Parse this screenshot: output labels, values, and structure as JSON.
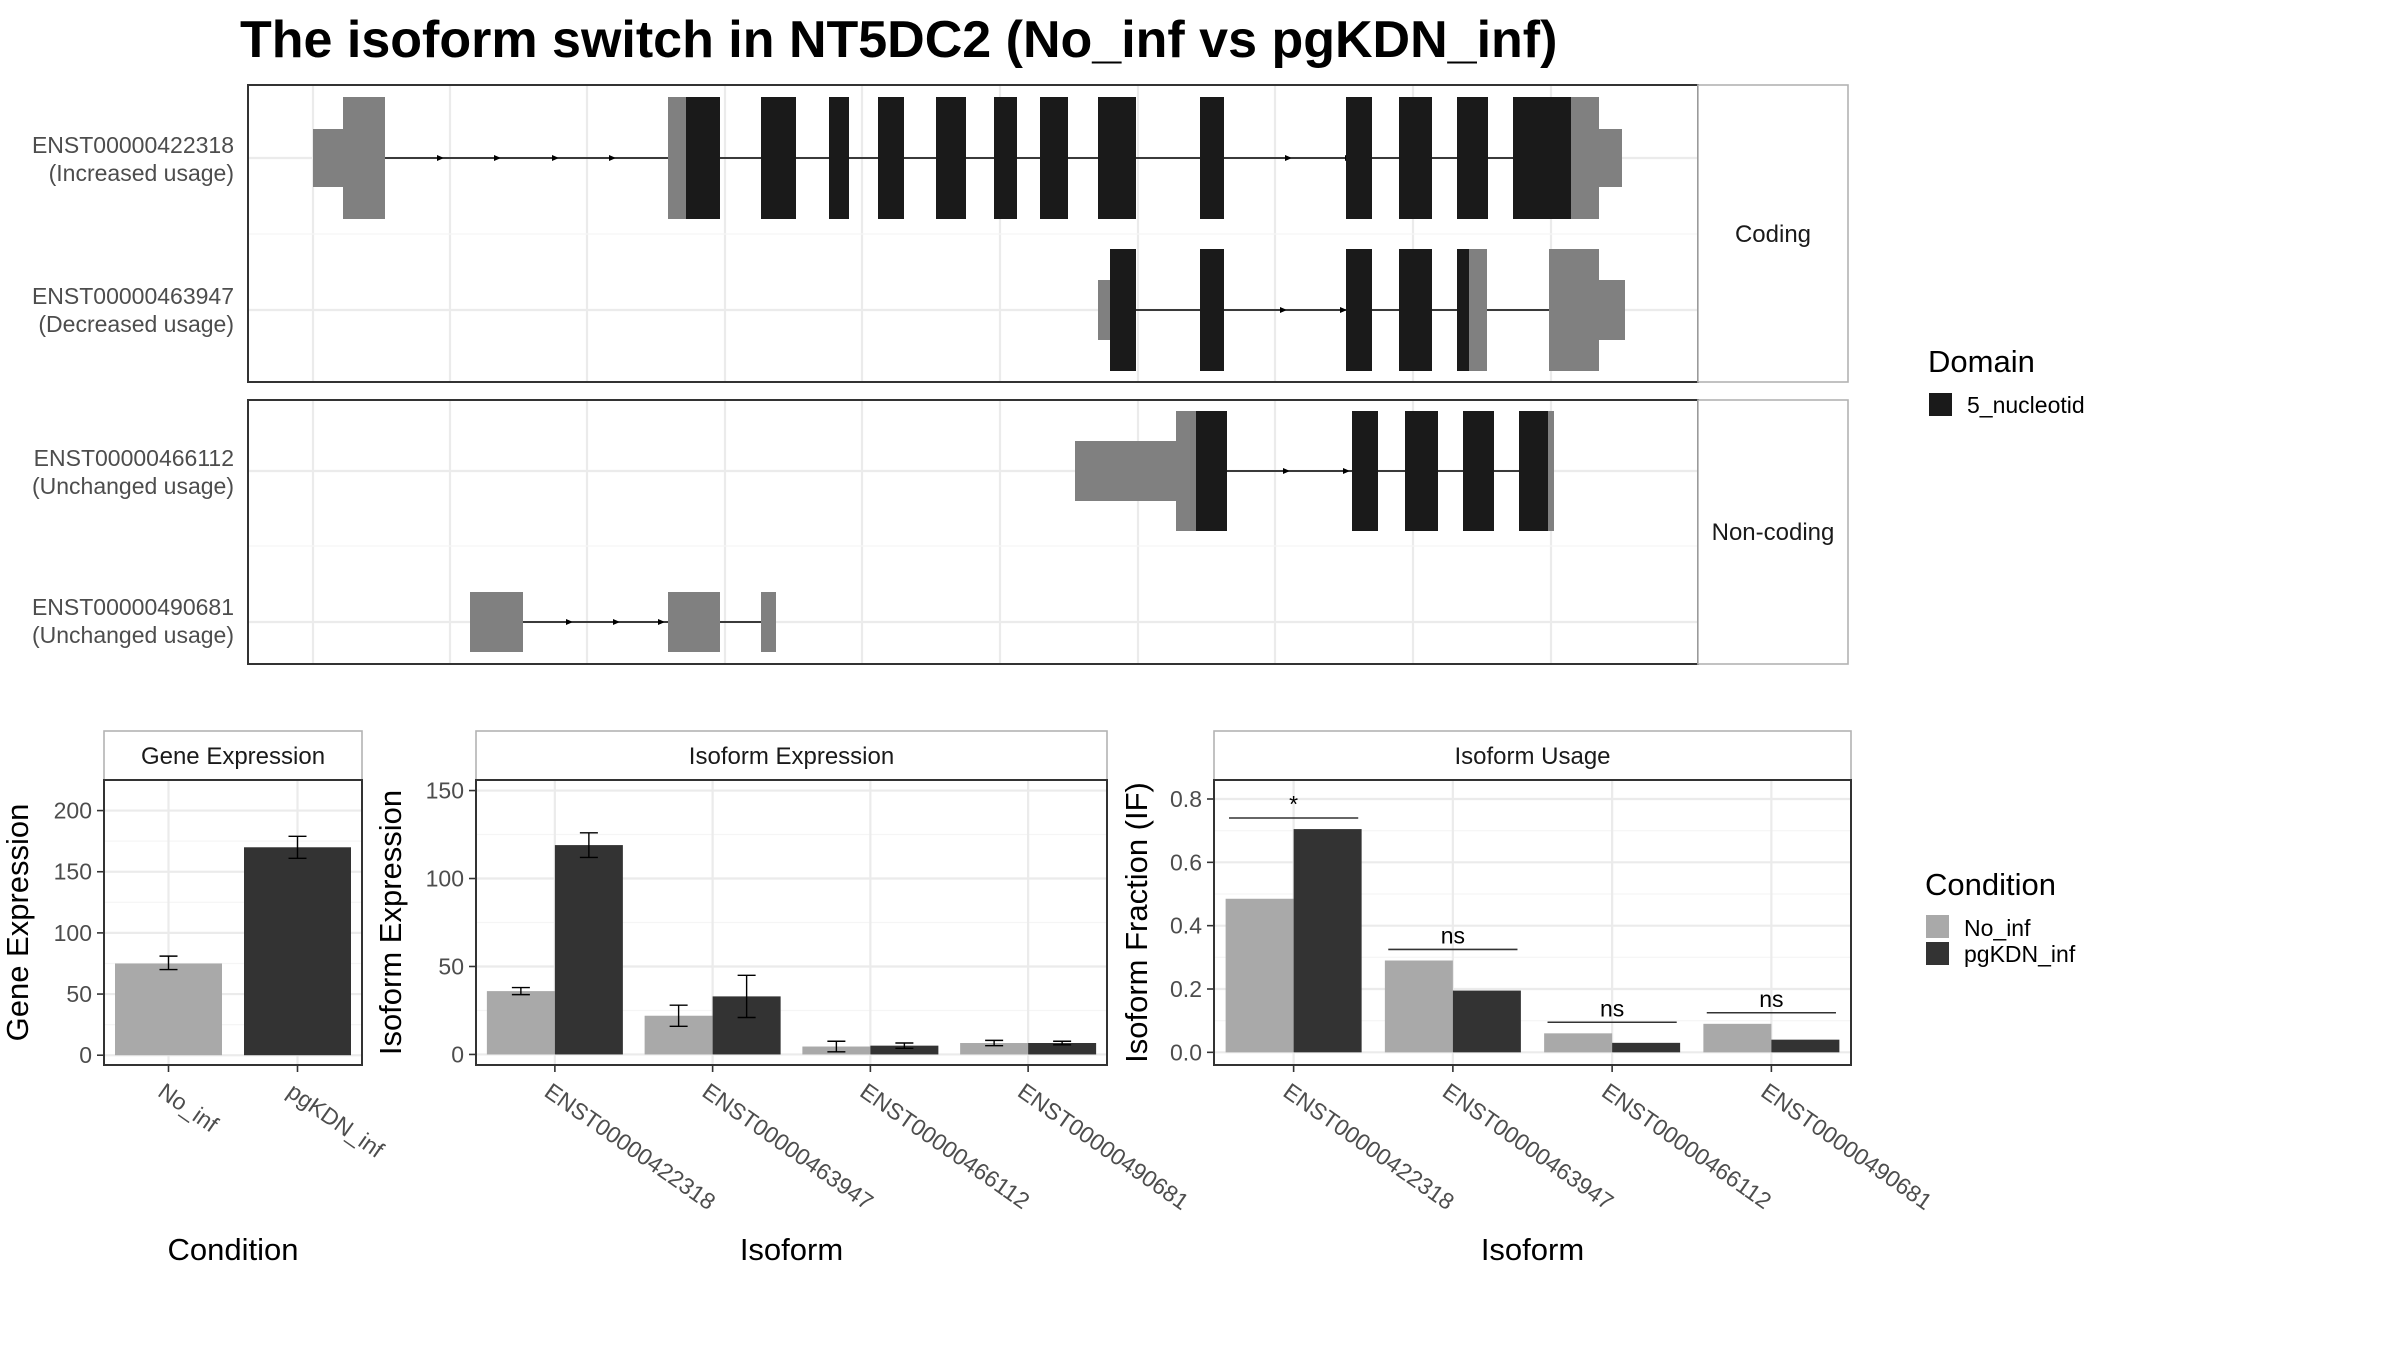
{
  "title": "The isoform switch in NT5DC2 (No_inf vs pgKDN_inf)",
  "colors": {
    "domain": "#1a1a1a",
    "utr": "#808080",
    "no_inf": "#a9a9a9",
    "pgKDN_inf": "#333333",
    "grid": "#ebebeb",
    "panel_border": "#333333",
    "strip_border": "#b3b3b3"
  },
  "structure": {
    "facets": [
      "Coding",
      "Non-coding"
    ],
    "transcripts": [
      {
        "id": "ENST00000422318",
        "usage": "(Increased usage)",
        "facet": "Coding"
      },
      {
        "id": "ENST00000463947",
        "usage": "(Decreased usage)",
        "facet": "Coding"
      },
      {
        "id": "ENST00000466112",
        "usage": "(Unchanged usage)",
        "facet": "Non-coding"
      },
      {
        "id": "ENST00000490681",
        "usage": "(Unchanged usage)",
        "facet": "Non-coding"
      }
    ],
    "legend": {
      "title": "Domain",
      "items": [
        "5_nucleotid"
      ]
    }
  },
  "condition_legend": {
    "title": "Condition",
    "items": [
      "No_inf",
      "pgKDN_inf"
    ]
  },
  "chart_data": [
    {
      "type": "bar",
      "panel": "Gene Expression",
      "xlabel": "Condition",
      "ylabel": "Gene Expression",
      "categories": [
        "No_inf",
        "pgKDN_inf"
      ],
      "values": [
        75,
        170
      ],
      "errors": [
        [
          70,
          81
        ],
        [
          161,
          179
        ]
      ],
      "ylim": [
        -8,
        225
      ],
      "yticks": [
        0,
        50,
        100,
        150,
        200
      ]
    },
    {
      "type": "bar",
      "panel": "Isoform Expression",
      "xlabel": "Isoform",
      "ylabel": "Isoform Expression",
      "categories": [
        "ENST00000422318",
        "ENST00000463947",
        "ENST00000466112",
        "ENST00000490681"
      ],
      "series": [
        {
          "name": "No_inf",
          "values": [
            36,
            22,
            4.5,
            6.5
          ],
          "errors": [
            [
              34,
              38
            ],
            [
              16,
              28
            ],
            [
              1.5,
              7.5
            ],
            [
              5,
              8
            ]
          ]
        },
        {
          "name": "pgKDN_inf",
          "values": [
            119,
            33,
            5,
            6.5
          ],
          "errors": [
            [
              112,
              126
            ],
            [
              21,
              45
            ],
            [
              3.5,
              6.5
            ],
            [
              5.5,
              7.5
            ]
          ]
        }
      ],
      "ylim": [
        -6,
        156
      ],
      "yticks": [
        0,
        50,
        100,
        150
      ]
    },
    {
      "type": "bar",
      "panel": "Isoform Usage",
      "xlabel": "Isoform",
      "ylabel": "Isoform Fraction (IF)",
      "categories": [
        "ENST00000422318",
        "ENST00000463947",
        "ENST00000466112",
        "ENST00000490681"
      ],
      "series": [
        {
          "name": "No_inf",
          "values": [
            0.485,
            0.29,
            0.06,
            0.09
          ]
        },
        {
          "name": "pgKDN_inf",
          "values": [
            0.705,
            0.195,
            0.03,
            0.04
          ]
        }
      ],
      "significance": [
        "*",
        "ns",
        "ns",
        "ns"
      ],
      "ylim": [
        -0.04,
        0.86
      ],
      "yticks": [
        0,
        0.2,
        0.4,
        0.6,
        0.8
      ],
      "ytick_labels": [
        "0.0",
        "0.2",
        "0.4",
        "0.6",
        "0.8"
      ]
    }
  ]
}
